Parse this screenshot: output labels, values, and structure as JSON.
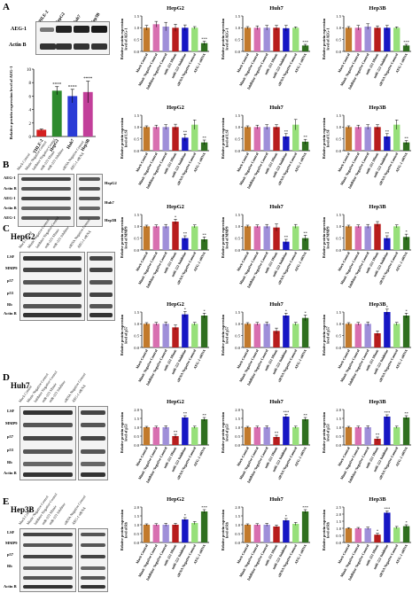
{
  "panels": {
    "A": "A",
    "B": "B",
    "C": "C",
    "D": "D",
    "E": "E"
  },
  "cell_lines": {
    "hepg2": "HepG2",
    "huh7": "Huh7",
    "hep3b": "Hep3B",
    "thle2": "THLE-2"
  },
  "blot_rows": {
    "aeg1": "AEG-1",
    "actb": "Actin B",
    "lsf": "LSF",
    "mmp9": "MMP9",
    "p57": "p57",
    "p53": "p53",
    "rb": "Rb",
    "aeg1_lc": "AEG-1"
  },
  "lane_labels": [
    "Mock Control",
    "Mimic Negative Control",
    "Inhibitor Negative Control",
    "miR-221 Mimic",
    "miR-221 Inhibitor",
    "siRNA Negative Control",
    "AEG-1 siRNA"
  ],
  "stars": {
    "four": "****",
    "three": "***",
    "two": "**",
    "one": "*"
  },
  "colors": {
    "mock": "#c27a2c",
    "mimic_nc": "#d86fb0",
    "inhib_nc": "#9f8fd9",
    "mimic": "#b81d1d",
    "inhibitor": "#1717c4",
    "sirna_nc": "#97e07a",
    "sirna": "#2f6f1f",
    "thle2": "#d42020",
    "hepg2_bar": "#2d8a2d",
    "huh7_bar": "#2a3bd6",
    "hep3b_bar": "#c23f9a"
  },
  "chart_data": [
    {
      "type": "bar",
      "ylabel": "Relative protein expression level of AEG-1",
      "categories": [
        "THLE-2",
        "HepG2",
        "Huh7",
        "Hep3B"
      ],
      "values": [
        1.0,
        6.8,
        6.0,
        6.6
      ],
      "errors": [
        0.1,
        0.6,
        1.0,
        1.6
      ],
      "ylim": [
        0,
        10
      ],
      "yticks": [
        0,
        2,
        4,
        6,
        8,
        10
      ],
      "annotations": [
        "",
        "****",
        "****",
        "****"
      ]
    },
    {
      "type": "bar",
      "title": "HepG2",
      "ylabel": "Relative protein expression level of AEG-1",
      "categories": [
        "Mock Control",
        "Mimic Negative Control",
        "Inhibitor Negative Control",
        "miR-221 Mimic",
        "miR-221 Inhibitor",
        "siRNA Negative Control",
        "AEG-1 siRNA"
      ],
      "values": [
        1.0,
        1.15,
        1.05,
        1.0,
        1.0,
        1.0,
        0.35
      ],
      "errors": [
        0.1,
        0.12,
        0.18,
        0.15,
        0.12,
        0.05,
        0.08
      ],
      "ylim": [
        0,
        1.5
      ],
      "yticks": [
        0.0,
        0.5,
        1.0,
        1.5
      ],
      "annotations": [
        "",
        "",
        "",
        "",
        "",
        "",
        "***"
      ]
    },
    {
      "type": "bar",
      "title": "Huh7",
      "ylabel": "Relative protein expression level of AEG-1",
      "categories": [
        "Mock Control",
        "Mimic Negative Control",
        "Inhibitor Negative Control",
        "miR-221 Mimic",
        "miR-221 Inhibitor",
        "siRNA Negative Control",
        "AEG-1 siRNA"
      ],
      "values": [
        1.0,
        1.0,
        1.0,
        1.0,
        0.98,
        1.0,
        0.25
      ],
      "errors": [
        0.05,
        0.08,
        0.1,
        0.1,
        0.12,
        0.04,
        0.05
      ],
      "ylim": [
        0,
        1.5
      ],
      "yticks": [
        0.0,
        0.5,
        1.0,
        1.5
      ],
      "annotations": [
        "",
        "",
        "",
        "",
        "",
        "",
        "***"
      ]
    },
    {
      "type": "bar",
      "title": "Hep3B",
      "ylabel": "Relative protein expression level of AEG-1",
      "categories": [
        "Mock Control",
        "Mimic Negative Control",
        "Inhibitor Negative Control",
        "miR-221 Mimic",
        "miR-221 Inhibitor",
        "siRNA Negative Control",
        "AEG-1 siRNA"
      ],
      "values": [
        1.0,
        1.0,
        1.05,
        1.0,
        1.0,
        1.0,
        0.25
      ],
      "errors": [
        0.05,
        0.1,
        0.12,
        0.08,
        0.1,
        0.04,
        0.05
      ],
      "ylim": [
        0,
        1.5
      ],
      "yticks": [
        0.0,
        0.5,
        1.0,
        1.5
      ],
      "annotations": [
        "",
        "",
        "",
        "",
        "",
        "",
        "***"
      ]
    },
    {
      "type": "bar",
      "title": "HepG2",
      "ylabel": "Relative protein expression level of LSF",
      "categories": [
        "Mock Control",
        "Mimic Negative Control",
        "Inhibitor Negative Control",
        "miR-221 Mimic",
        "miR-221 Inhibitor",
        "siRNA Negative Control",
        "AEG-1 siRNA"
      ],
      "values": [
        1.0,
        1.0,
        1.0,
        1.0,
        0.55,
        1.1,
        0.35
      ],
      "errors": [
        0.05,
        0.08,
        0.1,
        0.12,
        0.15,
        0.2,
        0.1
      ],
      "ylim": [
        0,
        1.5
      ],
      "yticks": [
        0.0,
        0.5,
        1.0,
        1.5
      ],
      "annotations": [
        "",
        "",
        "",
        "",
        "**",
        "",
        "**"
      ]
    },
    {
      "type": "bar",
      "title": "Huh7",
      "ylabel": "Relative protein expression level of LSF",
      "categories": [
        "Mock Control",
        "Mimic Negative Control",
        "Inhibitor Negative Control",
        "miR-221 Mimic",
        "miR-221 Inhibitor",
        "siRNA Negative Control",
        "AEG-1 siRNA"
      ],
      "values": [
        1.0,
        1.0,
        1.0,
        1.0,
        0.6,
        1.1,
        0.38
      ],
      "errors": [
        0.05,
        0.08,
        0.1,
        0.1,
        0.12,
        0.22,
        0.1
      ],
      "ylim": [
        0,
        1.5
      ],
      "yticks": [
        0.0,
        0.5,
        1.0,
        1.5
      ],
      "annotations": [
        "",
        "",
        "",
        "",
        "**",
        "",
        "**"
      ]
    },
    {
      "type": "bar",
      "title": "Hep3B",
      "ylabel": "Relative protein expression level of LSF",
      "categories": [
        "Mock Control",
        "Mimic Negative Control",
        "Inhibitor Negative Control",
        "miR-221 Mimic",
        "miR-221 Inhibitor",
        "siRNA Negative Control",
        "AEG-1 siRNA"
      ],
      "values": [
        1.0,
        1.0,
        1.0,
        1.0,
        0.6,
        1.1,
        0.35
      ],
      "errors": [
        0.05,
        0.08,
        0.1,
        0.1,
        0.12,
        0.2,
        0.08
      ],
      "ylim": [
        0,
        1.5
      ],
      "yticks": [
        0.0,
        0.5,
        1.0,
        1.5
      ],
      "annotations": [
        "",
        "",
        "",
        "",
        "**",
        "",
        "**"
      ]
    },
    {
      "type": "bar",
      "title": "HepG2",
      "ylabel": "Relative protein expression level of MMP9",
      "categories": [
        "Mock Control",
        "Mimic Negative Control",
        "Inhibitor Negative Control",
        "miR-221 Mimic",
        "miR-221 Inhibitor",
        "siRNA Negative Control",
        "AEG-1 siRNA"
      ],
      "values": [
        1.0,
        1.0,
        1.0,
        1.2,
        0.5,
        1.0,
        0.45
      ],
      "errors": [
        0.05,
        0.06,
        0.08,
        0.1,
        0.1,
        0.06,
        0.1
      ],
      "ylim": [
        0,
        1.5
      ],
      "yticks": [
        0.0,
        0.5,
        1.0,
        1.5
      ],
      "annotations": [
        "",
        "",
        "",
        "*",
        "**",
        "",
        "**"
      ]
    },
    {
      "type": "bar",
      "title": "Huh7",
      "ylabel": "Relative protein expression level of MMP9",
      "categories": [
        "Mock Control",
        "Mimic Negative Control",
        "Inhibitor Negative Control",
        "miR-221 Mimic",
        "miR-221 Inhibitor",
        "siRNA Negative Control",
        "AEG-1 siRNA"
      ],
      "values": [
        1.0,
        1.0,
        1.0,
        0.95,
        0.35,
        1.0,
        0.5
      ],
      "errors": [
        0.05,
        0.06,
        0.08,
        0.15,
        0.1,
        0.08,
        0.12
      ],
      "ylim": [
        0,
        1.5
      ],
      "yticks": [
        0.0,
        0.5,
        1.0,
        1.5
      ],
      "annotations": [
        "",
        "",
        "",
        "",
        "**",
        "",
        "**"
      ]
    },
    {
      "type": "bar",
      "title": "Hep3B",
      "ylabel": "Relative protein expression level of MMP9",
      "categories": [
        "Mock Control",
        "Mimic Negative Control",
        "Inhibitor Negative Control",
        "miR-221 Mimic",
        "miR-221 Inhibitor",
        "siRNA Negative Control",
        "AEG-1 siRNA"
      ],
      "values": [
        1.0,
        1.0,
        1.0,
        1.1,
        0.5,
        1.0,
        0.55
      ],
      "errors": [
        0.05,
        0.06,
        0.08,
        0.1,
        0.1,
        0.06,
        0.12
      ],
      "ylim": [
        0,
        1.5
      ],
      "yticks": [
        0.0,
        0.5,
        1.0,
        1.5
      ],
      "annotations": [
        "",
        "",
        "",
        "",
        "**",
        "",
        "*"
      ]
    },
    {
      "type": "bar",
      "title": "HepG2",
      "ylabel": "Relative protein expression level of p57",
      "categories": [
        "Mock Control",
        "Mimic Negative Control",
        "Inhibitor Negative Control",
        "miR-221 Mimic",
        "miR-221 Inhibitor",
        "siRNA Negative Control",
        "AEG-1 siRNA"
      ],
      "values": [
        1.0,
        1.0,
        1.0,
        0.85,
        1.4,
        1.0,
        1.35
      ],
      "errors": [
        0.05,
        0.06,
        0.08,
        0.1,
        0.12,
        0.06,
        0.1
      ],
      "ylim": [
        0,
        1.5
      ],
      "yticks": [
        0.0,
        0.5,
        1.0,
        1.5
      ],
      "annotations": [
        "",
        "",
        "",
        "",
        "*",
        "",
        "*"
      ]
    },
    {
      "type": "bar",
      "title": "Huh7",
      "ylabel": "Relative protein expression level of p57",
      "categories": [
        "Mock Control",
        "Mimic Negative Control",
        "Inhibitor Negative Control",
        "miR-221 Mimic",
        "miR-221 Inhibitor",
        "siRNA Negative Control",
        "AEG-1 siRNA"
      ],
      "values": [
        1.0,
        1.0,
        1.0,
        0.7,
        1.35,
        1.0,
        1.25
      ],
      "errors": [
        0.05,
        0.06,
        0.08,
        0.12,
        0.1,
        0.06,
        0.12
      ],
      "ylim": [
        0,
        1.5
      ],
      "yticks": [
        0.0,
        0.5,
        1.0,
        1.5
      ],
      "annotations": [
        "",
        "",
        "",
        "",
        "*",
        "",
        "*"
      ]
    },
    {
      "type": "bar",
      "title": "Hep3B",
      "ylabel": "Relative protein expression level of p57",
      "categories": [
        "Mock Control",
        "Mimic Negative Control",
        "Inhibitor Negative Control",
        "miR-221 Mimic",
        "miR-221 Inhibitor",
        "siRNA Negative Control",
        "AEG-1 siRNA"
      ],
      "values": [
        1.0,
        1.0,
        1.0,
        0.6,
        1.5,
        1.0,
        1.35
      ],
      "errors": [
        0.05,
        0.06,
        0.08,
        0.1,
        0.12,
        0.06,
        0.1
      ],
      "ylim": [
        0,
        1.5
      ],
      "yticks": [
        0.0,
        0.5,
        1.0,
        1.5
      ],
      "annotations": [
        "",
        "",
        "",
        "",
        "*",
        "",
        "*"
      ]
    },
    {
      "type": "bar",
      "title": "HepG2",
      "ylabel": "Relative protein expression level of p53",
      "categories": [
        "Mock Control",
        "Mimic Negative Control",
        "Inhibitor Negative Control",
        "miR-221 Mimic",
        "miR-221 Inhibitor",
        "siRNA Negative Control",
        "AEG-1 siRNA"
      ],
      "values": [
        1.0,
        1.0,
        1.0,
        0.5,
        1.55,
        1.0,
        1.45
      ],
      "errors": [
        0.05,
        0.06,
        0.08,
        0.1,
        0.1,
        0.06,
        0.1
      ],
      "ylim": [
        0,
        2.0
      ],
      "yticks": [
        0.0,
        0.5,
        1.0,
        1.5,
        2.0
      ],
      "annotations": [
        "",
        "",
        "",
        "**",
        "**",
        "",
        "**"
      ]
    },
    {
      "type": "bar",
      "title": "Huh7",
      "ylabel": "Relative protein expression level of p53",
      "categories": [
        "Mock Control",
        "Mimic Negative Control",
        "Inhibitor Negative Control",
        "miR-221 Mimic",
        "miR-221 Inhibitor",
        "siRNA Negative Control",
        "AEG-1 siRNA"
      ],
      "values": [
        1.0,
        1.0,
        1.0,
        0.45,
        1.6,
        1.0,
        1.45
      ],
      "errors": [
        0.05,
        0.06,
        0.08,
        0.1,
        0.12,
        0.06,
        0.1
      ],
      "ylim": [
        0,
        2.0
      ],
      "yticks": [
        0.0,
        0.5,
        1.0,
        1.5,
        2.0
      ],
      "annotations": [
        "",
        "",
        "",
        "**",
        "***",
        "",
        "**"
      ]
    },
    {
      "type": "bar",
      "title": "Hep3B",
      "ylabel": "Relative protein expression level of p53",
      "categories": [
        "Mock Control",
        "Mimic Negative Control",
        "Inhibitor Negative Control",
        "miR-221 Mimic",
        "miR-221 Inhibitor",
        "siRNA Negative Control",
        "AEG-1 siRNA"
      ],
      "values": [
        1.0,
        1.0,
        1.0,
        0.35,
        1.6,
        1.0,
        1.55
      ],
      "errors": [
        0.05,
        0.06,
        0.08,
        0.1,
        0.1,
        0.06,
        0.1
      ],
      "ylim": [
        0,
        2.0
      ],
      "yticks": [
        0.0,
        0.5,
        1.0,
        1.5,
        2.0
      ],
      "annotations": [
        "",
        "",
        "",
        "**",
        "***",
        "",
        "**"
      ]
    },
    {
      "type": "bar",
      "title": "HepG2",
      "ylabel": "Relative protein expression level of Rb",
      "categories": [
        "Mock Control",
        "Mimic Negative Control",
        "Inhibitor Negative Control",
        "miR-221 Mimic",
        "miR-221 Inhibitor",
        "siRNA Negative Control",
        "AEG-1 siRNA"
      ],
      "values": [
        1.0,
        1.0,
        1.0,
        1.0,
        1.3,
        1.1,
        1.75
      ],
      "errors": [
        0.05,
        0.06,
        0.08,
        0.08,
        0.1,
        0.08,
        0.1
      ],
      "ylim": [
        0,
        2.0
      ],
      "yticks": [
        0.0,
        0.5,
        1.0,
        1.5,
        2.0
      ],
      "annotations": [
        "",
        "",
        "",
        "",
        "*",
        "",
        "***"
      ]
    },
    {
      "type": "bar",
      "title": "Huh7",
      "ylabel": "Relative protein expression level of Rb",
      "categories": [
        "Mock Control",
        "Mimic Negative Control",
        "Inhibitor Negative Control",
        "miR-221 Mimic",
        "miR-221 Inhibitor",
        "siRNA Negative Control",
        "AEG-1 siRNA"
      ],
      "values": [
        1.0,
        1.0,
        1.0,
        0.9,
        1.25,
        1.05,
        1.75
      ],
      "errors": [
        0.05,
        0.06,
        0.08,
        0.08,
        0.1,
        0.08,
        0.1
      ],
      "ylim": [
        0,
        2.0
      ],
      "yticks": [
        0.0,
        0.5,
        1.0,
        1.5,
        2.0
      ],
      "annotations": [
        "",
        "",
        "",
        "",
        "*",
        "",
        "***"
      ]
    },
    {
      "type": "bar",
      "title": "Hep3B",
      "ylabel": "Relative protein expression level of Rb",
      "categories": [
        "Mock Control",
        "Mimic Negative Control",
        "Inhibitor Negative Control",
        "miR-221 Mimic",
        "miR-221 Inhibitor",
        "siRNA Negative Control",
        "AEG-1 siRNA"
      ],
      "values": [
        1.0,
        1.0,
        1.0,
        0.55,
        2.1,
        1.05,
        1.15
      ],
      "errors": [
        0.05,
        0.06,
        0.08,
        0.1,
        0.12,
        0.08,
        0.1
      ],
      "ylim": [
        0,
        2.5
      ],
      "yticks": [
        0.0,
        0.5,
        1.0,
        1.5,
        2.0,
        2.5
      ],
      "annotations": [
        "",
        "",
        "",
        "*",
        "***",
        "",
        "*"
      ]
    }
  ]
}
